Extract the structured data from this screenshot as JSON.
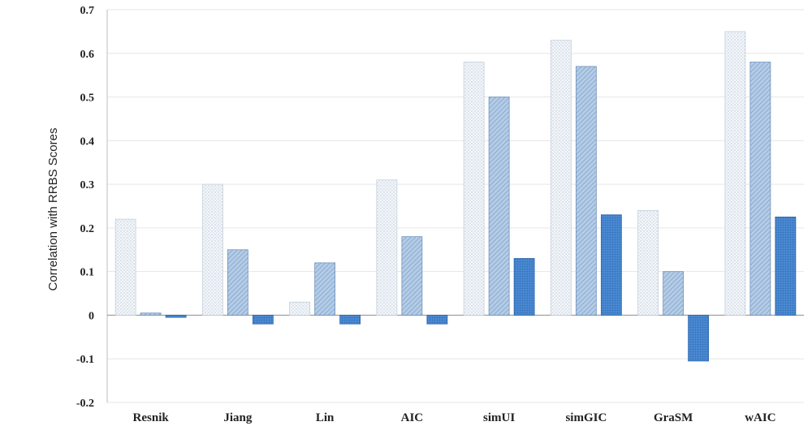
{
  "chart_data": {
    "type": "bar",
    "ylabel": "Correlation with RRBS Scores",
    "xlabel": "",
    "title": "",
    "ylim": [
      -0.2,
      0.7
    ],
    "yticks": [
      "-0.2",
      "-0.1",
      "0",
      "0.1",
      "0.2",
      "0.3",
      "0.4",
      "0.5",
      "0.6",
      "0.7"
    ],
    "grid": true,
    "legend": "none",
    "categories": [
      "Resnik",
      "Jiang",
      "Lin",
      "AIC",
      "simUI",
      "simGIC",
      "GraSM",
      "wAIC"
    ],
    "series": [
      {
        "values": [
          0.22,
          0.3,
          0.03,
          0.31,
          0.58,
          0.63,
          0.24,
          0.65
        ],
        "color": "#eef3f8"
      },
      {
        "values": [
          0.005,
          0.15,
          0.12,
          0.18,
          0.5,
          0.57,
          0.1,
          0.58
        ],
        "color": "#a9c4e2"
      },
      {
        "values": [
          -0.005,
          -0.02,
          -0.02,
          -0.02,
          0.13,
          0.23,
          -0.105,
          0.225
        ],
        "color": "#3d7fcb"
      }
    ]
  }
}
